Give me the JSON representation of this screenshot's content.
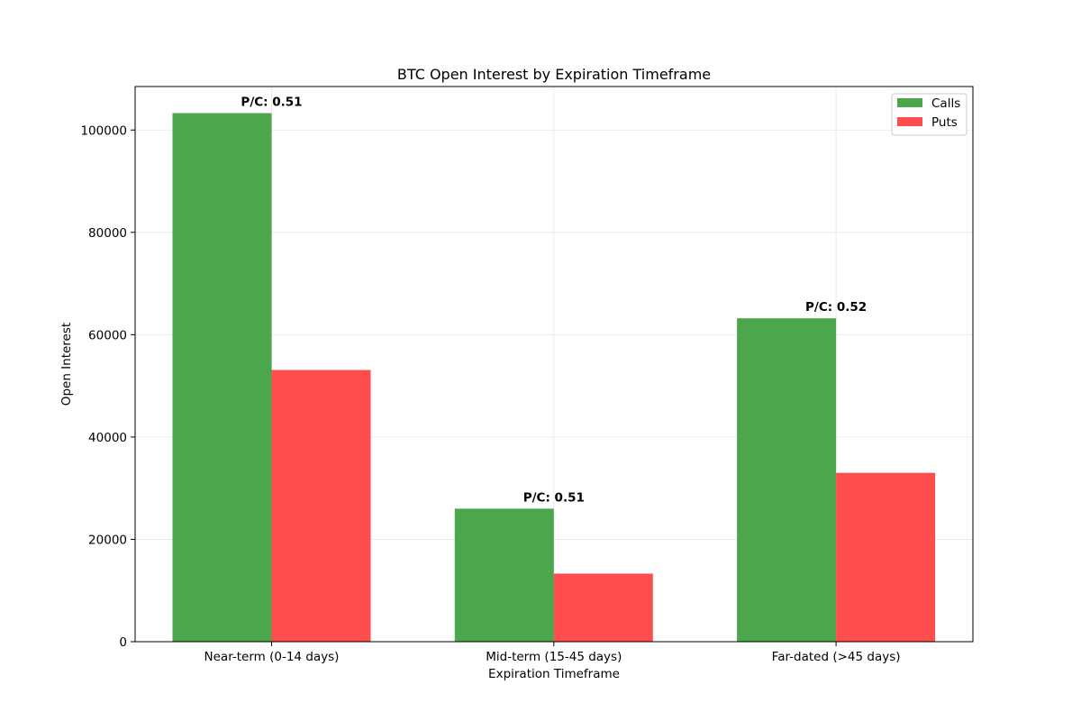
{
  "chart_data": {
    "type": "bar",
    "title": "BTC Open Interest by Expiration Timeframe",
    "xlabel": "Expiration Timeframe",
    "ylabel": "Open Interest",
    "categories": [
      "Near-term (0-14 days)",
      "Mid-term (15-45 days)",
      "Far-dated (>45 days)"
    ],
    "series": [
      {
        "name": "Calls",
        "color": "#4ca64c",
        "values": [
          103300,
          26000,
          63200
        ]
      },
      {
        "name": "Puts",
        "color": "#ff4d4d",
        "values": [
          53100,
          13300,
          33000
        ]
      }
    ],
    "annotations": [
      "P/C: 0.51",
      "P/C: 0.51",
      "P/C: 0.52"
    ],
    "ylim": [
      0,
      108500
    ],
    "yticks": [
      0,
      20000,
      40000,
      60000,
      80000,
      100000
    ],
    "ytick_labels": [
      "0",
      "20000",
      "40000",
      "60000",
      "80000",
      "100000"
    ],
    "grid": true,
    "legend_position": "top-right"
  }
}
